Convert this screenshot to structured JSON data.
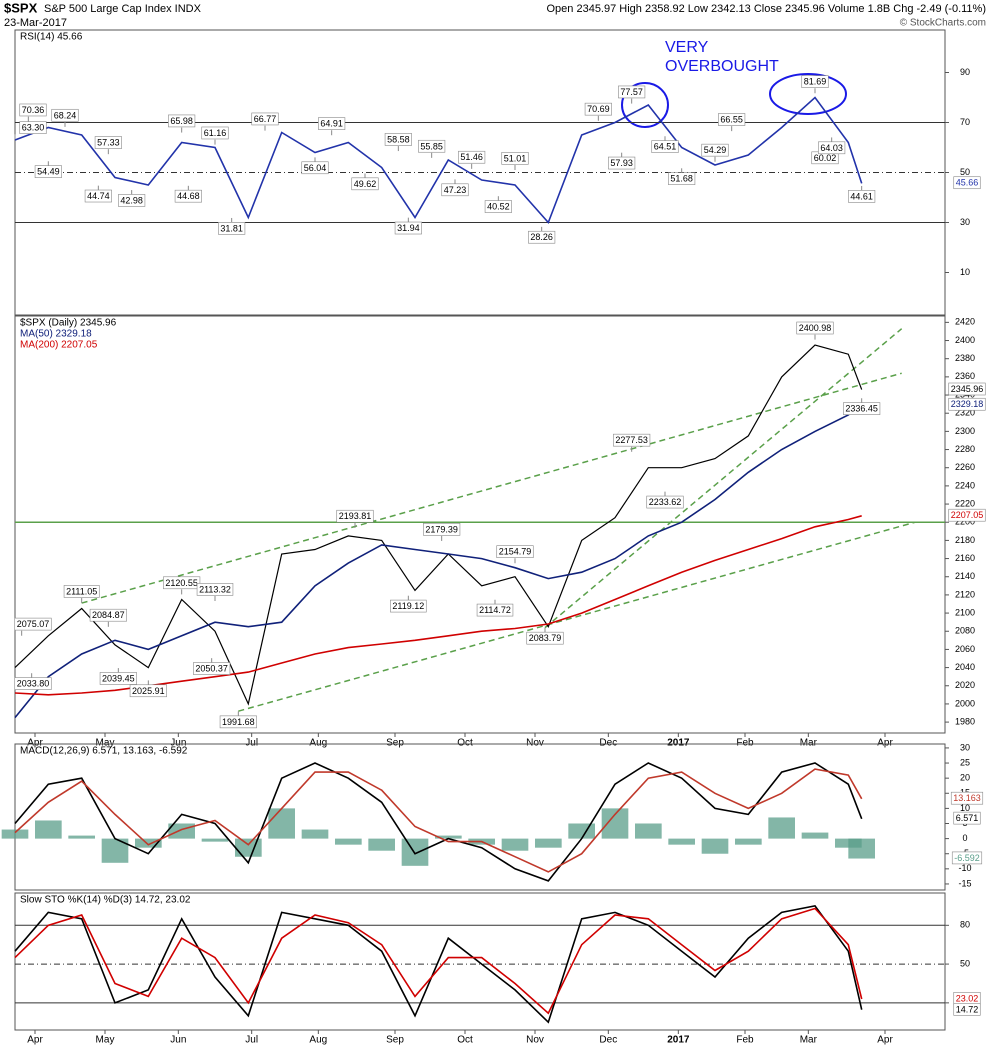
{
  "header": {
    "title": "$SPX",
    "subtitle": "S&P 500 Large Cap Index INDX",
    "date": "23-Mar-2017",
    "quote": "Open 2345.97 High 2358.92 Low 2342.13 Close 2345.96 Volume 1.8B Chg -2.49 (-0.11%)",
    "credit": "© StockCharts.com"
  },
  "chart_data": [
    {
      "type": "line",
      "legend": [
        {
          "text": "RSI(14) 45.66",
          "color": "#000000"
        }
      ],
      "notes": [
        "VERY",
        "OVERBOUGHT"
      ],
      "x": [
        0,
        10,
        20,
        30,
        40,
        50,
        60,
        70,
        80,
        90,
        100,
        110,
        120,
        130,
        140,
        150,
        160,
        170,
        180,
        190,
        200,
        210,
        220,
        230,
        240,
        250,
        254
      ],
      "xlim": [
        0,
        279
      ],
      "ylim": [
        -7,
        107
      ],
      "yticks": [
        10,
        30,
        50,
        70,
        90
      ],
      "hlines": [
        {
          "value": 70,
          "style": "solid"
        },
        {
          "value": 50,
          "style": "dashdot"
        },
        {
          "value": 30,
          "style": "solid"
        }
      ],
      "series": [
        {
          "color": "#2233aa",
          "last_label": "45.66",
          "values": [
            63,
            68,
            65,
            48,
            45,
            62,
            60,
            32,
            66,
            58,
            62,
            52,
            32,
            55,
            47,
            45,
            30,
            65,
            70,
            77,
            60,
            53,
            57,
            68,
            80,
            62,
            45.66
          ]
        }
      ],
      "annotations": [
        {
          "x": 0,
          "value": 63.3,
          "label": "63.30"
        },
        {
          "x": 4,
          "value": 70.36,
          "label": "70.36"
        },
        {
          "x": 10,
          "value": 54.49,
          "label": "54.49"
        },
        {
          "x": 15,
          "value": 68.24,
          "label": "68.24"
        },
        {
          "x": 25,
          "value": 44.74,
          "label": "44.74"
        },
        {
          "x": 28,
          "value": 57.33,
          "label": "57.33"
        },
        {
          "x": 35,
          "value": 42.98,
          "label": "42.98"
        },
        {
          "x": 50,
          "value": 65.98,
          "label": "65.98"
        },
        {
          "x": 52,
          "value": 44.68,
          "label": "44.68"
        },
        {
          "x": 60,
          "value": 61.16,
          "label": "61.16"
        },
        {
          "x": 65,
          "value": 31.81,
          "label": "31.81"
        },
        {
          "x": 75,
          "value": 66.77,
          "label": "66.77"
        },
        {
          "x": 90,
          "value": 56.04,
          "label": "56.04"
        },
        {
          "x": 95,
          "value": 64.91,
          "label": "64.91"
        },
        {
          "x": 105,
          "value": 49.62,
          "label": "49.62"
        },
        {
          "x": 115,
          "value": 58.58,
          "label": "58.58"
        },
        {
          "x": 118,
          "value": 31.94,
          "label": "31.94"
        },
        {
          "x": 125,
          "value": 55.85,
          "label": "55.85"
        },
        {
          "x": 132,
          "value": 47.23,
          "label": "47.23"
        },
        {
          "x": 137,
          "value": 51.46,
          "label": "51.46"
        },
        {
          "x": 145,
          "value": 40.52,
          "label": "40.52"
        },
        {
          "x": 150,
          "value": 51.01,
          "label": "51.01"
        },
        {
          "x": 158,
          "value": 28.26,
          "label": "28.26"
        },
        {
          "x": 175,
          "value": 70.69,
          "label": "70.69"
        },
        {
          "x": 182,
          "value": 57.93,
          "label": "57.93"
        },
        {
          "x": 185,
          "value": 77.57,
          "label": "77.57"
        },
        {
          "x": 195,
          "value": 64.51,
          "label": "64.51"
        },
        {
          "x": 200,
          "value": 51.68,
          "label": "51.68"
        },
        {
          "x": 210,
          "value": 54.29,
          "label": "54.29"
        },
        {
          "x": 215,
          "value": 66.55,
          "label": "66.55"
        },
        {
          "x": 240,
          "value": 81.69,
          "label": "81.69"
        },
        {
          "x": 243,
          "value": 60.02,
          "label": "60.02"
        },
        {
          "x": 245,
          "value": 64.03,
          "label": "64.03"
        },
        {
          "x": 254,
          "value": 44.61,
          "label": "44.61"
        }
      ]
    },
    {
      "type": "line",
      "legend": [
        {
          "text": "$SPX (Daily) 2345.96",
          "color": "#000000"
        },
        {
          "text": "MA(50) 2329.18",
          "color": "#10217a"
        },
        {
          "text": "MA(200) 2207.05",
          "color": "#d00000"
        }
      ],
      "x": [
        0,
        10,
        20,
        30,
        40,
        50,
        60,
        70,
        80,
        90,
        100,
        110,
        120,
        130,
        140,
        150,
        160,
        170,
        180,
        190,
        200,
        210,
        220,
        230,
        240,
        250,
        254
      ],
      "xlim": [
        0,
        279
      ],
      "ylim": [
        1968,
        2427
      ],
      "yticks": [
        1980,
        2000,
        2020,
        2040,
        2060,
        2080,
        2100,
        2120,
        2140,
        2160,
        2180,
        2200,
        2220,
        2240,
        2260,
        2280,
        2300,
        2320,
        2340,
        2360,
        2380,
        2400,
        2420
      ],
      "xticks": [
        {
          "value": 6,
          "label": "Apr"
        },
        {
          "value": 27,
          "label": "May"
        },
        {
          "value": 49,
          "label": "Jun"
        },
        {
          "value": 71,
          "label": "Jul"
        },
        {
          "value": 91,
          "label": "Aug"
        },
        {
          "value": 114,
          "label": "Sep"
        },
        {
          "value": 135,
          "label": "Oct"
        },
        {
          "value": 156,
          "label": "Nov"
        },
        {
          "value": 178,
          "label": "Dec"
        },
        {
          "value": 199,
          "label": "2017",
          "bold": true
        },
        {
          "value": 219,
          "label": "Feb"
        },
        {
          "value": 238,
          "label": "Mar"
        },
        {
          "value": 261,
          "label": "Apr"
        }
      ],
      "hlines": [
        {
          "value": 2200,
          "style": "green"
        }
      ],
      "trendlines": [
        [
          [
            20,
            2111
          ],
          [
            266,
            2364
          ]
        ],
        [
          [
            67,
            1992
          ],
          [
            270,
            2200
          ]
        ],
        [
          [
            159,
            2084
          ],
          [
            266,
            2413
          ]
        ]
      ],
      "series": [
        {
          "color": "#000000",
          "last_label": "2345.96",
          "values": [
            2040,
            2075,
            2105,
            2065,
            2040,
            2115,
            2080,
            2000,
            2165,
            2170,
            2185,
            2180,
            2125,
            2165,
            2130,
            2140,
            2085,
            2180,
            2205,
            2260,
            2260,
            2270,
            2295,
            2360,
            2395,
            2385,
            2345.96
          ]
        },
        {
          "color": "#10217a",
          "last_label": "2329.18",
          "values": [
            1985,
            2030,
            2055,
            2070,
            2060,
            2075,
            2090,
            2085,
            2090,
            2130,
            2155,
            2175,
            2170,
            2165,
            2160,
            2150,
            2138,
            2145,
            2160,
            2185,
            2200,
            2225,
            2255,
            2280,
            2300,
            2318,
            2329.18
          ]
        },
        {
          "color": "#d00000",
          "last_label": "2207.05",
          "values": [
            2012,
            2010,
            2012,
            2015,
            2020,
            2025,
            2030,
            2035,
            2045,
            2055,
            2062,
            2066,
            2070,
            2075,
            2080,
            2083,
            2088,
            2100,
            2115,
            2130,
            2145,
            2158,
            2170,
            2182,
            2195,
            2203,
            2207.05
          ]
        }
      ],
      "annotations": [
        {
          "x": 2,
          "value": 2075.07,
          "label": "2075.07"
        },
        {
          "x": 5,
          "value": 2033.8,
          "label": "2033.80"
        },
        {
          "x": 20,
          "value": 2111.05,
          "label": "2111.05"
        },
        {
          "x": 28,
          "value": 2084.87,
          "label": "2084.87"
        },
        {
          "x": 31,
          "value": 2039.45,
          "label": "2039.45"
        },
        {
          "x": 40,
          "value": 2025.91,
          "label": "2025.91"
        },
        {
          "x": 50,
          "value": 2120.55,
          "label": "2120.55"
        },
        {
          "x": 59,
          "value": 2050.37,
          "label": "2050.37"
        },
        {
          "x": 60,
          "value": 2113.32,
          "label": "2113.32"
        },
        {
          "x": 67,
          "value": 1991.68,
          "label": "1991.68"
        },
        {
          "x": 102,
          "value": 2193.81,
          "label": "2193.81"
        },
        {
          "x": 118,
          "value": 2119.12,
          "label": "2119.12"
        },
        {
          "x": 128,
          "value": 2179.39,
          "label": "2179.39"
        },
        {
          "x": 144,
          "value": 2114.72,
          "label": "2114.72"
        },
        {
          "x": 150,
          "value": 2154.79,
          "label": "2154.79"
        },
        {
          "x": 159,
          "value": 2083.79,
          "label": "2083.79"
        },
        {
          "x": 185,
          "value": 2277.53,
          "label": "2277.53"
        },
        {
          "x": 195,
          "value": 2233.62,
          "label": "2233.62"
        },
        {
          "x": 240,
          "value": 2400.98,
          "label": "2400.98"
        },
        {
          "x": 254,
          "value": 2336.45,
          "label": "2336.45"
        }
      ]
    },
    {
      "type": "line",
      "legend": [
        {
          "text": "MACD(12,26,9) 6.571, 13.163, -6.592",
          "color": "#000000"
        }
      ],
      "x": [
        0,
        10,
        20,
        30,
        40,
        50,
        60,
        70,
        80,
        90,
        100,
        110,
        120,
        130,
        140,
        150,
        160,
        170,
        180,
        190,
        200,
        210,
        220,
        230,
        240,
        250,
        254
      ],
      "xlim": [
        0,
        279
      ],
      "ylim": [
        -17,
        31.3
      ],
      "yticks": [
        -15,
        -10,
        -5,
        0,
        5,
        10,
        15,
        20,
        25,
        30
      ],
      "series": [
        {
          "kind": "bar",
          "color": "#5a9e8a",
          "last_label": "-6.592",
          "values": [
            3,
            6,
            1,
            -8,
            -3,
            5,
            -1,
            -6,
            10,
            3,
            -2,
            -4,
            -9,
            1,
            -2,
            -4,
            -3,
            5,
            10,
            5,
            -2,
            -5,
            -2,
            7,
            2,
            -3,
            -6.592
          ]
        },
        {
          "color": "#000000",
          "last_label": "6.571",
          "values": [
            5,
            18,
            20,
            0,
            -5,
            8,
            5,
            -8,
            20,
            25,
            20,
            12,
            -5,
            0,
            -3,
            -10,
            -14,
            0,
            18,
            25,
            20,
            10,
            8,
            22,
            25,
            18,
            6.571
          ]
        },
        {
          "color": "#c0392b",
          "last_label": "13.163",
          "values": [
            2,
            12,
            19,
            8,
            -2,
            3,
            6,
            -2,
            10,
            22,
            22,
            16,
            4,
            -1,
            -1,
            -6,
            -11,
            -5,
            8,
            20,
            22,
            15,
            10,
            15,
            23,
            21,
            13.163
          ]
        }
      ]
    },
    {
      "type": "line",
      "legend": [
        {
          "text": "Slow STO %K(14) %D(3) 14.72, 23.02",
          "color": "#000000"
        }
      ],
      "x": [
        0,
        10,
        20,
        30,
        40,
        50,
        60,
        70,
        80,
        90,
        100,
        110,
        120,
        130,
        140,
        150,
        160,
        170,
        180,
        190,
        200,
        210,
        220,
        230,
        240,
        250,
        254
      ],
      "xlim": [
        0,
        279
      ],
      "ylim": [
        -1,
        105
      ],
      "yticks": [
        20,
        50,
        80
      ],
      "xticks": [
        {
          "value": 6,
          "label": "Apr"
        },
        {
          "value": 27,
          "label": "May"
        },
        {
          "value": 49,
          "label": "Jun"
        },
        {
          "value": 71,
          "label": "Jul"
        },
        {
          "value": 91,
          "label": "Aug"
        },
        {
          "value": 114,
          "label": "Sep"
        },
        {
          "value": 135,
          "label": "Oct"
        },
        {
          "value": 156,
          "label": "Nov"
        },
        {
          "value": 178,
          "label": "Dec"
        },
        {
          "value": 199,
          "label": "2017",
          "bold": true
        },
        {
          "value": 219,
          "label": "Feb"
        },
        {
          "value": 238,
          "label": "Mar"
        },
        {
          "value": 261,
          "label": "Apr"
        }
      ],
      "hlines": [
        {
          "value": 80,
          "style": "solid"
        },
        {
          "value": 50,
          "style": "dashdot"
        },
        {
          "value": 20,
          "style": "solid"
        }
      ],
      "series": [
        {
          "color": "#000000",
          "last_label": "14.72",
          "values": [
            60,
            90,
            85,
            20,
            30,
            85,
            40,
            10,
            90,
            85,
            80,
            60,
            10,
            70,
            50,
            30,
            5,
            85,
            90,
            80,
            60,
            40,
            70,
            90,
            95,
            60,
            14.72
          ]
        },
        {
          "color": "#d00000",
          "last_label": "23.02",
          "values": [
            55,
            80,
            88,
            35,
            25,
            70,
            55,
            20,
            70,
            88,
            82,
            65,
            25,
            55,
            55,
            35,
            12,
            65,
            88,
            85,
            65,
            45,
            60,
            85,
            93,
            65,
            23.02
          ]
        }
      ]
    }
  ]
}
